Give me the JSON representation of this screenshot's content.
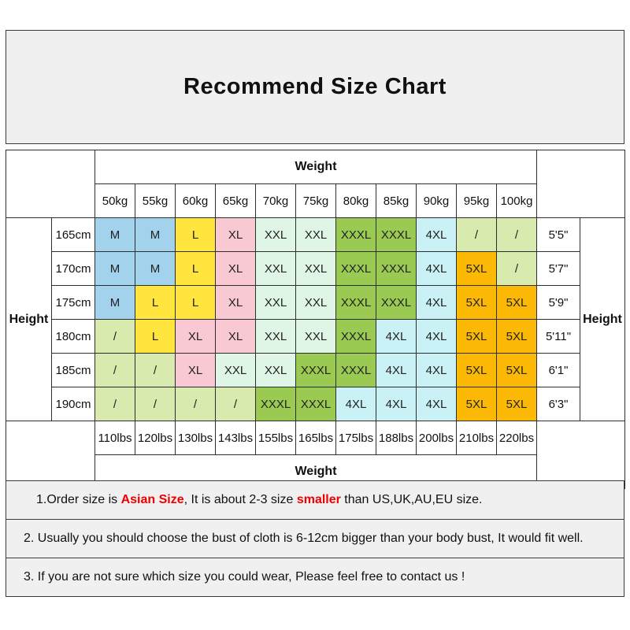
{
  "title": "Recommend Size Chart",
  "table": {
    "weight_label": "Weight",
    "height_label": "Height",
    "kg_headers": [
      "50kg",
      "55kg",
      "60kg",
      "65kg",
      "70kg",
      "75kg",
      "80kg",
      "85kg",
      "90kg",
      "95kg",
      "100kg"
    ],
    "lbs_headers": [
      "110lbs",
      "120lbs",
      "130lbs",
      "143lbs",
      "155lbs",
      "165lbs",
      "175lbs",
      "188lbs",
      "200lbs",
      "210lbs",
      "220lbs"
    ],
    "rows": [
      {
        "cm": "165cm",
        "ft": "5'5\"",
        "sizes": [
          "M",
          "M",
          "L",
          "XL",
          "XXL",
          "XXL",
          "XXXL",
          "XXXL",
          "4XL",
          "/",
          "/"
        ]
      },
      {
        "cm": "170cm",
        "ft": "5'7\"",
        "sizes": [
          "M",
          "M",
          "L",
          "XL",
          "XXL",
          "XXL",
          "XXXL",
          "XXXL",
          "4XL",
          "5XL",
          "/"
        ]
      },
      {
        "cm": "175cm",
        "ft": "5'9\"",
        "sizes": [
          "M",
          "L",
          "L",
          "XL",
          "XXL",
          "XXL",
          "XXXL",
          "XXXL",
          "4XL",
          "5XL",
          "5XL"
        ]
      },
      {
        "cm": "180cm",
        "ft": "5'11\"",
        "sizes": [
          "/",
          "L",
          "XL",
          "XL",
          "XXL",
          "XXL",
          "XXXL",
          "4XL",
          "4XL",
          "5XL",
          "5XL"
        ]
      },
      {
        "cm": "185cm",
        "ft": "6'1\"",
        "sizes": [
          "/",
          "/",
          "XL",
          "XXL",
          "XXL",
          "XXXL",
          "XXXL",
          "4XL",
          "4XL",
          "5XL",
          "5XL"
        ]
      },
      {
        "cm": "190cm",
        "ft": "6'3\"",
        "sizes": [
          "/",
          "/",
          "/",
          "/",
          "XXXL",
          "XXXL",
          "4XL",
          "4XL",
          "4XL",
          "5XL",
          "5XL"
        ]
      }
    ],
    "size_colors": {
      "M": "#a2d2ec",
      "L": "#ffe53e",
      "XL": "#f8c8d3",
      "XXL": "#dff5e5",
      "XXXL": "#9aca52",
      "4XL": "#c9f1f6",
      "5XL": "#fbb905",
      "/": "#d9eaae"
    }
  },
  "notes": [
    {
      "parts": [
        {
          "text": "1.Order size is ",
          "red": false
        },
        {
          "text": "Asian Size",
          "red": true
        },
        {
          "text": ", It is about 2-3 size ",
          "red": false
        },
        {
          "text": "smaller",
          "red": true
        },
        {
          "text": " than US,UK,AU,EU size.",
          "red": false
        }
      ]
    },
    {
      "parts": [
        {
          "text": "2. Usually you should choose the bust of cloth is 6-12cm bigger than your body bust, It would fit well.",
          "red": false
        }
      ]
    },
    {
      "parts": [
        {
          "text": "3. If you are not sure which size you could wear, Please feel free to contact us !",
          "red": false
        }
      ]
    }
  ],
  "chart_data": {
    "type": "table",
    "title": "Recommend Size Chart",
    "col_axis_label": "Weight",
    "row_axis_label": "Height",
    "weight_kg": [
      50,
      55,
      60,
      65,
      70,
      75,
      80,
      85,
      90,
      95,
      100
    ],
    "weight_lbs": [
      110,
      120,
      130,
      143,
      155,
      165,
      175,
      188,
      200,
      210,
      220
    ],
    "height_cm": [
      165,
      170,
      175,
      180,
      185,
      190
    ],
    "height_ft": [
      "5'5\"",
      "5'7\"",
      "5'9\"",
      "5'11\"",
      "6'1\"",
      "6'3\""
    ],
    "sizes_matrix": [
      [
        "M",
        "M",
        "L",
        "XL",
        "XXL",
        "XXL",
        "XXXL",
        "XXXL",
        "4XL",
        "/",
        "/"
      ],
      [
        "M",
        "M",
        "L",
        "XL",
        "XXL",
        "XXL",
        "XXXL",
        "XXXL",
        "4XL",
        "5XL",
        "/"
      ],
      [
        "M",
        "L",
        "L",
        "XL",
        "XXL",
        "XXL",
        "XXXL",
        "XXXL",
        "4XL",
        "5XL",
        "5XL"
      ],
      [
        "/",
        "L",
        "XL",
        "XL",
        "XXL",
        "XXL",
        "XXXL",
        "4XL",
        "4XL",
        "5XL",
        "5XL"
      ],
      [
        "/",
        "/",
        "XL",
        "XXL",
        "XXL",
        "XXXL",
        "XXXL",
        "4XL",
        "4XL",
        "5XL",
        "5XL"
      ],
      [
        "/",
        "/",
        "/",
        "/",
        "XXXL",
        "XXXL",
        "4XL",
        "4XL",
        "4XL",
        "5XL",
        "5XL"
      ]
    ],
    "legend": "cell background color encodes size: M=#a2d2ec, L=#ffe53e, XL=#f8c8d3, XXL=#dff5e5, XXXL=#9aca52, 4XL=#c9f1f6, 5XL=#fbb905, /=#d9eaae"
  }
}
